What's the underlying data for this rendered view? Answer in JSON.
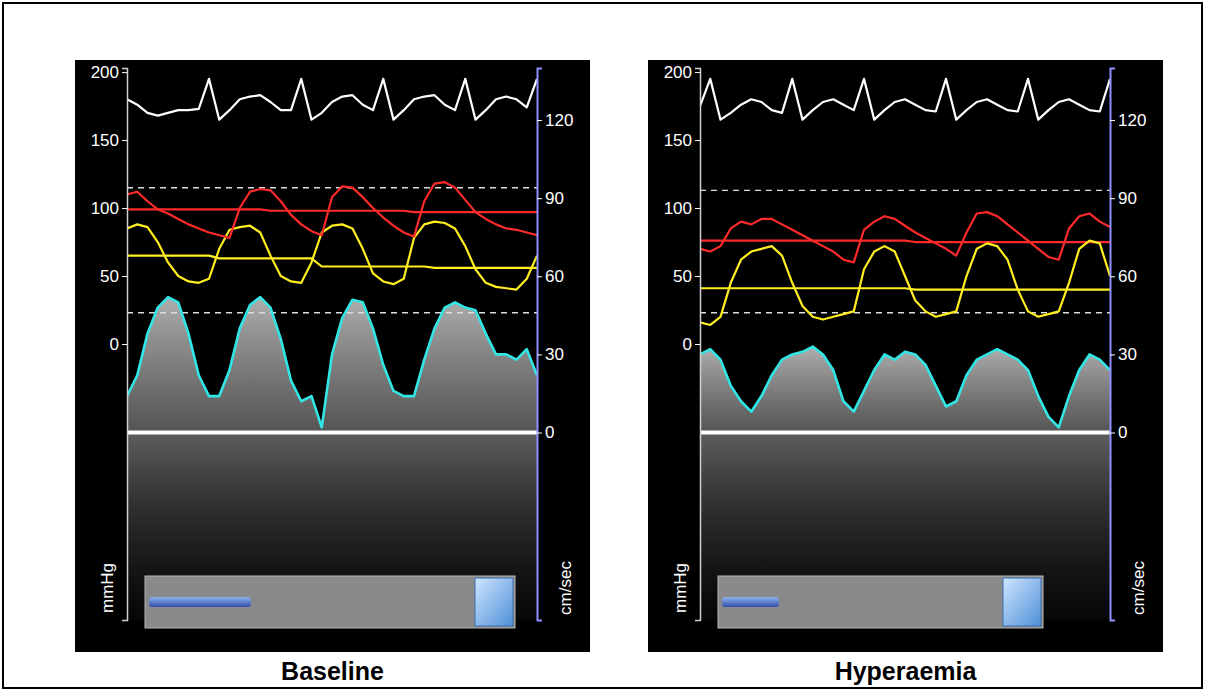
{
  "chart_data": [
    {
      "type": "line",
      "title": "Baseline",
      "ylabel": "mmHg",
      "y2label": "cm/sec",
      "x": [
        0,
        2.5,
        5,
        7.5,
        10,
        12.5,
        15,
        17.5,
        20,
        22.5,
        25,
        27.5,
        30,
        32.5,
        35,
        37.5,
        40,
        42.5,
        45,
        47.5,
        50,
        52.5,
        55,
        57.5,
        60,
        62.5,
        65,
        67.5,
        70,
        72.5,
        75,
        77.5,
        80,
        82.5,
        85,
        87.5,
        90,
        92.5,
        95,
        97.5,
        100
      ],
      "xlim": [
        0,
        100
      ],
      "ylim": [
        -203,
        203
      ],
      "yticks": [
        0,
        50,
        100,
        150,
        200
      ],
      "y2lim": [
        -72,
        140
      ],
      "y2ticks": [
        0,
        30,
        60,
        90,
        120
      ],
      "series": [
        {
          "color": "#ffffff",
          "line_style": "solid",
          "values": [
            180,
            176,
            170,
            168,
            170,
            172,
            172,
            173,
            195,
            165,
            172,
            180,
            182,
            183,
            178,
            172,
            172,
            195,
            165,
            170,
            178,
            182,
            183,
            176,
            172,
            195,
            165,
            172,
            180,
            182,
            183,
            176,
            172,
            195,
            165,
            172,
            180,
            182,
            180,
            174,
            195
          ]
        },
        {
          "color": "#ff2a2a",
          "line_style": "solid",
          "values": [
            110,
            112,
            105,
            99,
            96,
            92,
            88,
            85,
            82,
            80,
            78,
            100,
            112,
            114,
            113,
            105,
            95,
            88,
            83,
            80,
            108,
            116,
            115,
            108,
            100,
            93,
            87,
            82,
            79,
            105,
            118,
            119,
            115,
            106,
            97,
            92,
            88,
            85,
            84,
            82,
            80
          ]
        },
        {
          "color": "#ffee22",
          "line_style": "solid",
          "values": [
            85,
            88,
            86,
            75,
            60,
            50,
            46,
            45,
            48,
            70,
            84,
            86,
            87,
            82,
            65,
            50,
            46,
            45,
            60,
            82,
            87,
            88,
            85,
            70,
            52,
            46,
            44,
            48,
            78,
            88,
            90,
            89,
            85,
            72,
            55,
            45,
            42,
            41,
            40,
            48,
            65
          ]
        },
        {
          "color": "#33e6e6",
          "line_style": "solid",
          "type": "area",
          "axis": "y2",
          "values": [
            14,
            22,
            38,
            48,
            52,
            50,
            38,
            22,
            14,
            14,
            24,
            40,
            49,
            52,
            48,
            36,
            20,
            12,
            14,
            2,
            30,
            44,
            51,
            50,
            40,
            26,
            16,
            14,
            14,
            28,
            40,
            48,
            50,
            48,
            47,
            38,
            30,
            30,
            28,
            32,
            22
          ]
        },
        {
          "color": "#ff2a2a",
          "line_style": "solid",
          "values": [
            99,
            99,
            99,
            99,
            99,
            99,
            99,
            99,
            99,
            99,
            99,
            99,
            99,
            99,
            98,
            98,
            98,
            98,
            98,
            98,
            98,
            98,
            98,
            98,
            98,
            98,
            98,
            98,
            97,
            97,
            97,
            97,
            97,
            97,
            97,
            97,
            97,
            97,
            97,
            97,
            97
          ]
        },
        {
          "color": "#ffee22",
          "line_style": "solid",
          "values": [
            65,
            65,
            65,
            65,
            65,
            65,
            65,
            65,
            65,
            63,
            63,
            63,
            63,
            63,
            63,
            63,
            63,
            63,
            63,
            57,
            57,
            57,
            57,
            57,
            57,
            57,
            57,
            57,
            57,
            57,
            56,
            56,
            56,
            56,
            56,
            56,
            56,
            56,
            56,
            56,
            56
          ]
        },
        {
          "color": "#dddddd",
          "line_style": "dashed",
          "axis": "y2",
          "values": [
            94,
            94,
            94,
            94,
            94,
            94,
            94,
            94,
            94,
            94,
            94,
            94,
            94,
            94,
            94,
            94,
            94,
            94,
            94,
            94,
            94,
            94,
            94,
            94,
            94,
            94,
            94,
            94,
            94,
            94,
            94,
            94,
            94,
            94,
            94,
            94,
            94,
            94,
            94,
            94,
            94
          ]
        },
        {
          "color": "#dddddd",
          "line_style": "dashed",
          "axis": "y2",
          "values": [
            46,
            46,
            46,
            46,
            46,
            46,
            46,
            46,
            46,
            46,
            46,
            46,
            46,
            46,
            46,
            46,
            46,
            46,
            46,
            46,
            46,
            46,
            46,
            46,
            46,
            46,
            46,
            46,
            46,
            46,
            46,
            46,
            46,
            46,
            46,
            46,
            46,
            46,
            46,
            46,
            46
          ]
        }
      ]
    },
    {
      "type": "line",
      "title": "Hyperaemia",
      "ylabel": "mmHg",
      "y2label": "cm/sec",
      "x": [
        0,
        2.5,
        5,
        7.5,
        10,
        12.5,
        15,
        17.5,
        20,
        22.5,
        25,
        27.5,
        30,
        32.5,
        35,
        37.5,
        40,
        42.5,
        45,
        47.5,
        50,
        52.5,
        55,
        57.5,
        60,
        62.5,
        65,
        67.5,
        70,
        72.5,
        75,
        77.5,
        80,
        82.5,
        85,
        87.5,
        90,
        92.5,
        95,
        97.5,
        100
      ],
      "xlim": [
        0,
        100
      ],
      "ylim": [
        -203,
        203
      ],
      "yticks": [
        0,
        50,
        100,
        150,
        200
      ],
      "y2lim": [
        -72,
        140
      ],
      "y2ticks": [
        0,
        30,
        60,
        90,
        120
      ],
      "series": [
        {
          "color": "#ffffff",
          "line_style": "solid",
          "values": [
            175,
            195,
            165,
            170,
            176,
            180,
            178,
            172,
            170,
            195,
            165,
            172,
            178,
            180,
            176,
            172,
            195,
            165,
            172,
            178,
            180,
            176,
            172,
            171,
            195,
            165,
            172,
            178,
            180,
            176,
            172,
            171,
            195,
            165,
            172,
            178,
            180,
            176,
            172,
            171,
            195
          ]
        },
        {
          "color": "#ff2a2a",
          "line_style": "solid",
          "values": [
            70,
            68,
            72,
            85,
            90,
            88,
            92,
            92,
            88,
            84,
            80,
            76,
            72,
            68,
            62,
            60,
            84,
            90,
            94,
            92,
            87,
            82,
            78,
            74,
            70,
            65,
            82,
            96,
            97,
            94,
            88,
            82,
            76,
            70,
            64,
            62,
            85,
            94,
            96,
            90,
            86
          ]
        },
        {
          "color": "#ffee22",
          "line_style": "solid",
          "values": [
            16,
            14,
            20,
            45,
            62,
            68,
            70,
            72,
            65,
            45,
            28,
            20,
            18,
            20,
            22,
            24,
            55,
            68,
            72,
            68,
            50,
            32,
            24,
            20,
            22,
            24,
            50,
            70,
            74,
            72,
            62,
            40,
            24,
            20,
            22,
            24,
            45,
            70,
            76,
            74,
            50
          ]
        },
        {
          "color": "#33e6e6",
          "line_style": "solid",
          "type": "area",
          "axis": "y2",
          "values": [
            30,
            32,
            28,
            18,
            12,
            8,
            14,
            22,
            28,
            30,
            31,
            33,
            30,
            24,
            12,
            8,
            16,
            24,
            30,
            28,
            31,
            30,
            26,
            18,
            10,
            12,
            22,
            28,
            30,
            32,
            30,
            28,
            24,
            14,
            6,
            2,
            14,
            24,
            30,
            28,
            24
          ]
        },
        {
          "color": "#ff2a2a",
          "line_style": "solid",
          "values": [
            76,
            76,
            76,
            76,
            76,
            76,
            76,
            76,
            76,
            76,
            76,
            76,
            76,
            76,
            76,
            76,
            76,
            76,
            76,
            76,
            76,
            75,
            75,
            75,
            75,
            75,
            75,
            75,
            75,
            75,
            75,
            75,
            75,
            75,
            75,
            75,
            75,
            75,
            75,
            75,
            75
          ]
        },
        {
          "color": "#ffee22",
          "line_style": "solid",
          "values": [
            41,
            41,
            41,
            41,
            41,
            41,
            41,
            41,
            41,
            41,
            41,
            41,
            41,
            41,
            41,
            41,
            41,
            41,
            41,
            41,
            41,
            40,
            40,
            40,
            40,
            40,
            40,
            40,
            40,
            40,
            40,
            40,
            40,
            40,
            40,
            40,
            40,
            40,
            40,
            40,
            40
          ]
        },
        {
          "color": "#dddddd",
          "line_style": "dashed",
          "axis": "y2",
          "values": [
            93,
            93,
            93,
            93,
            93,
            93,
            93,
            93,
            93,
            93,
            93,
            93,
            93,
            93,
            93,
            93,
            93,
            93,
            93,
            93,
            93,
            93,
            93,
            93,
            93,
            93,
            93,
            93,
            93,
            93,
            93,
            93,
            93,
            93,
            93,
            93,
            93,
            93,
            93,
            93,
            93
          ]
        },
        {
          "color": "#dddddd",
          "line_style": "dashed",
          "axis": "y2",
          "values": [
            46,
            46,
            46,
            46,
            46,
            46,
            46,
            46,
            46,
            46,
            46,
            46,
            46,
            46,
            46,
            46,
            46,
            46,
            46,
            46,
            46,
            46,
            46,
            46,
            46,
            46,
            46,
            46,
            46,
            46,
            46,
            46,
            46,
            46,
            46,
            46,
            46,
            46,
            46,
            46,
            46
          ]
        }
      ]
    }
  ]
}
